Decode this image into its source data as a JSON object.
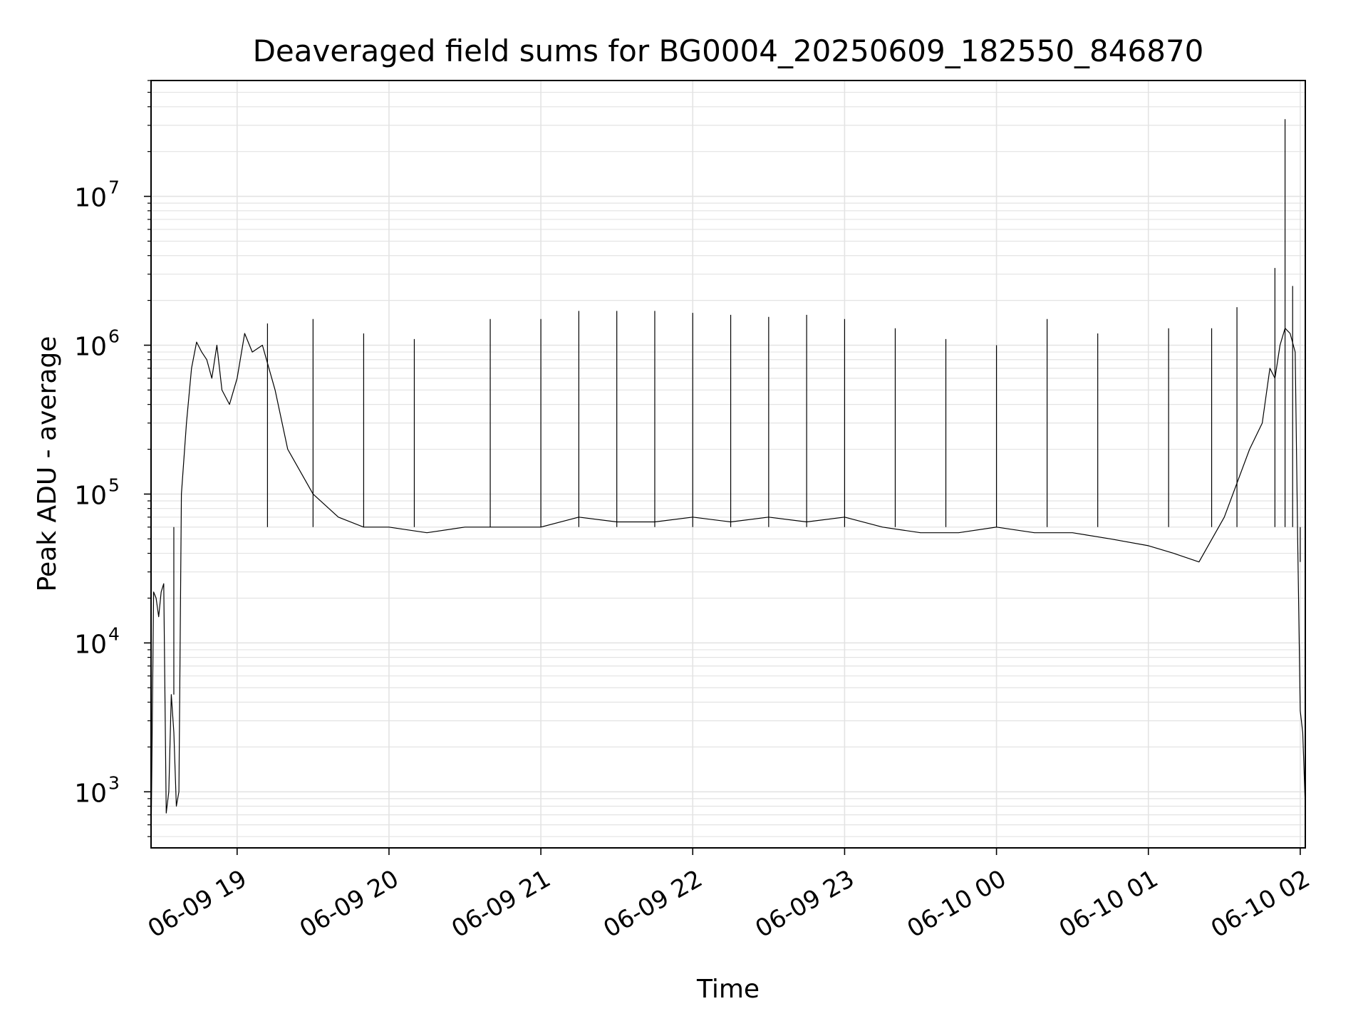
{
  "chart_data": {
    "type": "line",
    "title": "Deaveraged field sums for BG0004_20250609_182550_846870",
    "xlabel": "Time",
    "ylabel": "Peak ADU - average",
    "y_scale": "log",
    "ylim": [
      420,
      60000000
    ],
    "xlim": [
      "2025-06-09 18:26",
      "2025-06-10 02:02"
    ],
    "grid": "both (major and minor)",
    "line_color": "#000000",
    "x_ticks": [
      {
        "value": "2025-06-09 19:00",
        "label": "06-09 19"
      },
      {
        "value": "2025-06-09 20:00",
        "label": "06-09 20"
      },
      {
        "value": "2025-06-09 21:00",
        "label": "06-09 21"
      },
      {
        "value": "2025-06-09 22:00",
        "label": "06-09 22"
      },
      {
        "value": "2025-06-09 23:00",
        "label": "06-09 23"
      },
      {
        "value": "2025-06-10 00:00",
        "label": "06-10 00"
      },
      {
        "value": "2025-06-10 01:00",
        "label": "06-10 01"
      },
      {
        "value": "2025-06-10 02:00",
        "label": "06-10 02"
      }
    ],
    "y_ticks": [
      {
        "value": 1000,
        "base": "10",
        "exp": "3"
      },
      {
        "value": 10000,
        "base": "10",
        "exp": "4"
      },
      {
        "value": 100000,
        "base": "10",
        "exp": "5"
      },
      {
        "value": 1000000,
        "base": "10",
        "exp": "6"
      },
      {
        "value": 10000000,
        "base": "10",
        "exp": "7"
      }
    ],
    "series": [
      {
        "x": [
          "2025-06-09 18:26",
          "2025-06-09 18:27",
          "2025-06-09 18:28",
          "2025-06-09 18:29",
          "2025-06-09 18:30",
          "2025-06-09 18:31",
          "2025-06-09 18:32",
          "2025-06-09 18:33",
          "2025-06-09 18:34",
          "2025-06-09 18:35",
          "2025-06-09 18:36",
          "2025-06-09 18:37",
          "2025-06-09 18:38",
          "2025-06-09 18:40",
          "2025-06-09 18:42",
          "2025-06-09 18:44",
          "2025-06-09 18:46",
          "2025-06-09 18:48",
          "2025-06-09 18:50",
          "2025-06-09 18:52",
          "2025-06-09 18:54",
          "2025-06-09 18:57",
          "2025-06-09 19:00",
          "2025-06-09 19:03",
          "2025-06-09 19:06",
          "2025-06-09 19:10",
          "2025-06-09 19:15",
          "2025-06-09 19:20",
          "2025-06-09 19:30",
          "2025-06-09 19:40",
          "2025-06-09 19:50",
          "2025-06-09 20:00",
          "2025-06-09 20:15",
          "2025-06-09 20:30",
          "2025-06-09 20:45",
          "2025-06-09 21:00",
          "2025-06-09 21:15",
          "2025-06-09 21:30",
          "2025-06-09 21:45",
          "2025-06-09 22:00",
          "2025-06-09 22:15",
          "2025-06-09 22:30",
          "2025-06-09 22:45",
          "2025-06-09 23:00",
          "2025-06-09 23:15",
          "2025-06-09 23:30",
          "2025-06-09 23:45",
          "2025-06-10 00:00",
          "2025-06-10 00:15",
          "2025-06-10 00:30",
          "2025-06-10 00:45",
          "2025-06-10 01:00",
          "2025-06-10 01:10",
          "2025-06-10 01:20",
          "2025-06-10 01:30",
          "2025-06-10 01:40",
          "2025-06-10 01:45",
          "2025-06-10 01:48",
          "2025-06-10 01:50",
          "2025-06-10 01:52",
          "2025-06-10 01:54",
          "2025-06-10 01:56",
          "2025-06-10 01:58",
          "2025-06-10 01:59",
          "2025-06-10 02:00",
          "2025-06-10 02:01",
          "2025-06-10 02:02"
        ],
        "y": [
          440,
          22000,
          20000,
          15000,
          22000,
          25000,
          720,
          1000,
          4500,
          2500,
          800,
          1000,
          100000,
          300000,
          700000,
          1050000,
          900000,
          800000,
          600000,
          1000000,
          500000,
          400000,
          600000,
          1200000,
          900000,
          1000000,
          500000,
          200000,
          100000,
          70000,
          60000,
          60000,
          55000,
          60000,
          60000,
          60000,
          70000,
          65000,
          65000,
          70000,
          65000,
          70000,
          65000,
          70000,
          60000,
          55000,
          55000,
          60000,
          55000,
          55000,
          50000,
          45000,
          40000,
          35000,
          70000,
          200000,
          300000,
          700000,
          600000,
          1000000,
          1300000,
          1200000,
          900000,
          50000,
          3500,
          2500,
          800
        ]
      }
    ],
    "spikes": [
      {
        "x": "2025-06-09 18:35",
        "y": 4500
      },
      {
        "x": "2025-06-09 19:12",
        "y": 1400000
      },
      {
        "x": "2025-06-09 19:30",
        "y": 1500000
      },
      {
        "x": "2025-06-09 19:50",
        "y": 1200000
      },
      {
        "x": "2025-06-09 20:10",
        "y": 1100000
      },
      {
        "x": "2025-06-09 20:40",
        "y": 1500000
      },
      {
        "x": "2025-06-09 21:00",
        "y": 1500000
      },
      {
        "x": "2025-06-09 21:15",
        "y": 1700000
      },
      {
        "x": "2025-06-09 21:30",
        "y": 1700000
      },
      {
        "x": "2025-06-09 21:45",
        "y": 1700000
      },
      {
        "x": "2025-06-09 22:00",
        "y": 1650000
      },
      {
        "x": "2025-06-09 22:15",
        "y": 1600000
      },
      {
        "x": "2025-06-09 22:30",
        "y": 1550000
      },
      {
        "x": "2025-06-09 22:45",
        "y": 1600000
      },
      {
        "x": "2025-06-09 23:00",
        "y": 1500000
      },
      {
        "x": "2025-06-09 23:20",
        "y": 1300000
      },
      {
        "x": "2025-06-09 23:40",
        "y": 1100000
      },
      {
        "x": "2025-06-10 00:00",
        "y": 1000000
      },
      {
        "x": "2025-06-10 00:20",
        "y": 1500000
      },
      {
        "x": "2025-06-10 00:40",
        "y": 1200000
      },
      {
        "x": "2025-06-10 01:08",
        "y": 1300000
      },
      {
        "x": "2025-06-10 01:25",
        "y": 1300000
      },
      {
        "x": "2025-06-10 01:35",
        "y": 1800000
      },
      {
        "x": "2025-06-10 01:50",
        "y": 3300000
      },
      {
        "x": "2025-06-10 01:54",
        "y": 33000000
      },
      {
        "x": "2025-06-10 01:57",
        "y": 2500000
      },
      {
        "x": "2025-06-10 02:00",
        "y": 35000
      }
    ]
  }
}
